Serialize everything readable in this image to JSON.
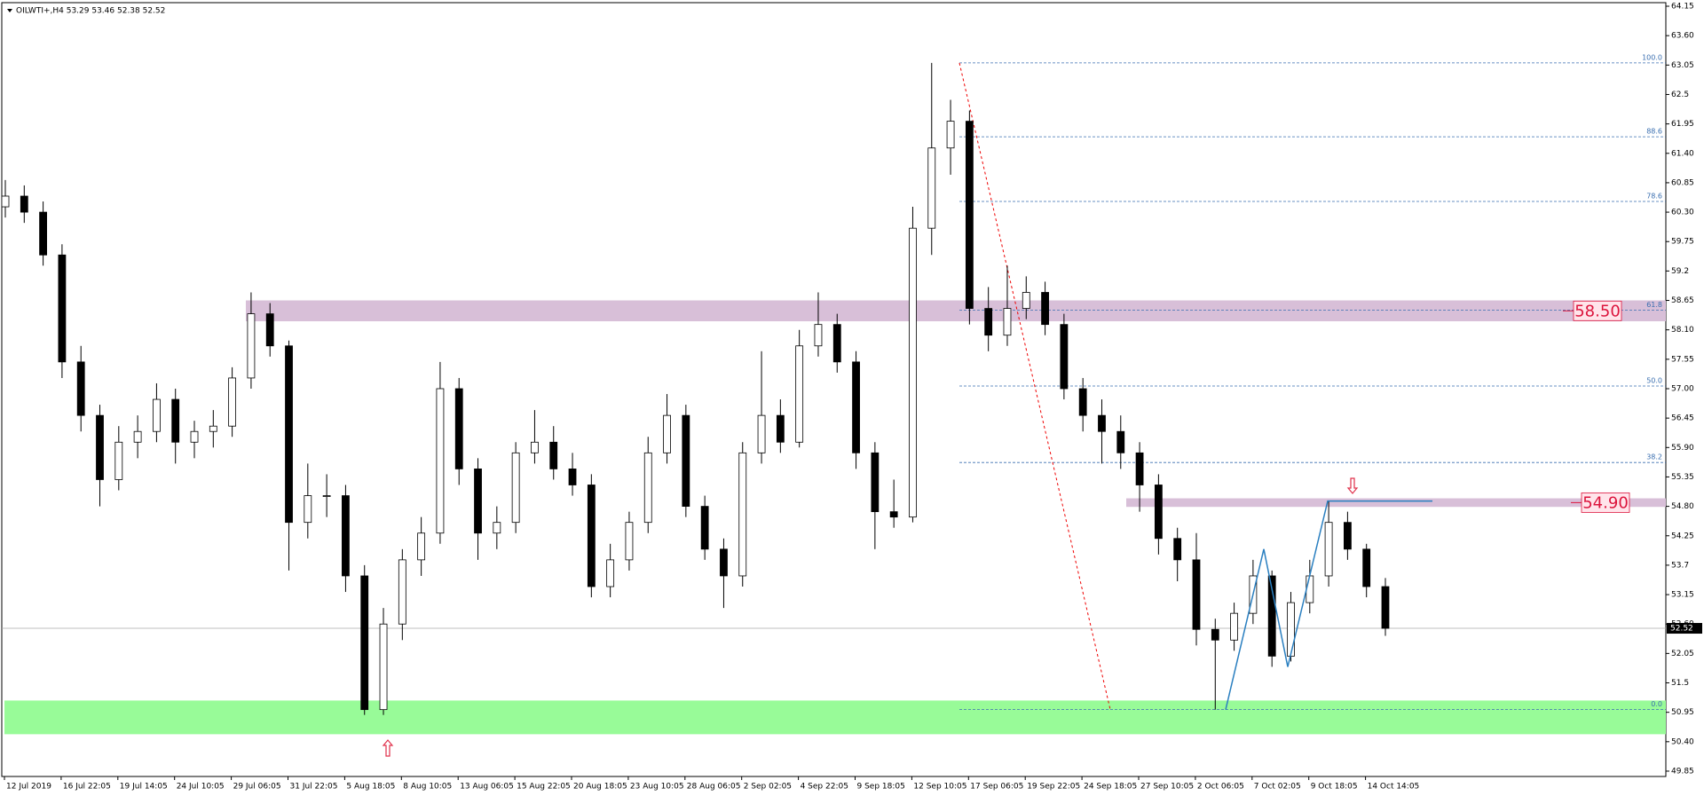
{
  "chart_data": {
    "type": "candlestick",
    "header": "OILWTI+,H4  53.29 53.46 52.38 52.52",
    "ylim": [
      49.75,
      64.2
    ],
    "yticks": [
      64.15,
      {
        "value": 63.6,
        "label": "63.60"
      },
      63.05,
      62.5,
      61.95,
      {
        "value": 61.4,
        "label": "61.40"
      },
      60.85,
      {
        "value": 60.3,
        "label": "60.30"
      },
      59.75,
      59.2,
      58.65,
      {
        "value": 58.1,
        "label": "58.10"
      },
      57.55,
      {
        "value": 57.0,
        "label": "57.00"
      },
      56.45,
      {
        "value": 55.9,
        "label": "55.90"
      },
      55.35,
      {
        "value": 54.8,
        "label": "54.80"
      },
      54.25,
      53.7,
      53.15,
      {
        "value": 52.6,
        "label": "52.60"
      },
      52.05,
      51.5,
      50.95,
      {
        "value": 50.4,
        "label": "50.40"
      },
      49.85
    ],
    "xticks": [
      "12 Jul 2019",
      "16 Jul 22:05",
      "19 Jul 14:05",
      "24 Jul 10:05",
      "29 Jul 06:05",
      "31 Jul 22:05",
      "5 Aug 18:05",
      "8 Aug 10:05",
      "13 Aug 06:05",
      "15 Aug 22:05",
      "20 Aug 18:05",
      "23 Aug 10:05",
      "28 Aug 06:05",
      "2 Sep 02:05",
      "4 Sep 22:05",
      "9 Sep 18:05",
      "12 Sep 10:05",
      "17 Sep 06:05",
      "19 Sep 22:05",
      "24 Sep 18:05",
      "27 Sep 10:05",
      "2 Oct 06:05",
      "7 Oct 02:05",
      "9 Oct 18:05",
      "14 Oct 14:05"
    ],
    "ohlc": [
      [
        60.4,
        60.9,
        60.2,
        60.6
      ],
      [
        60.6,
        60.8,
        60.1,
        60.3
      ],
      [
        60.3,
        60.5,
        59.3,
        59.5
      ],
      [
        59.5,
        59.7,
        57.2,
        57.5
      ],
      [
        57.5,
        57.8,
        56.2,
        56.5
      ],
      [
        56.5,
        56.7,
        54.8,
        55.3
      ],
      [
        55.3,
        56.3,
        55.1,
        56.0
      ],
      [
        56.0,
        56.5,
        55.7,
        56.2
      ],
      [
        56.2,
        57.1,
        56.0,
        56.8
      ],
      [
        56.8,
        57.0,
        55.6,
        56.0
      ],
      [
        56.0,
        56.4,
        55.7,
        56.2
      ],
      [
        56.2,
        56.6,
        55.9,
        56.3
      ],
      [
        56.3,
        57.4,
        56.1,
        57.2
      ],
      [
        57.2,
        58.8,
        57.0,
        58.4
      ],
      [
        58.4,
        58.6,
        57.6,
        57.8
      ],
      [
        57.8,
        57.9,
        53.6,
        54.5
      ],
      [
        54.5,
        55.6,
        54.2,
        55.0
      ],
      [
        55.0,
        55.4,
        54.6,
        55.0
      ],
      [
        55.0,
        55.2,
        53.2,
        53.5
      ],
      [
        53.5,
        53.7,
        50.9,
        51.0
      ],
      [
        51.0,
        52.9,
        50.9,
        52.6
      ],
      [
        52.6,
        54.0,
        52.3,
        53.8
      ],
      [
        53.8,
        54.6,
        53.5,
        54.3
      ],
      [
        54.3,
        57.5,
        54.1,
        57.0
      ],
      [
        57.0,
        57.2,
        55.2,
        55.5
      ],
      [
        55.5,
        55.7,
        53.8,
        54.3
      ],
      [
        54.3,
        54.8,
        54.0,
        54.5
      ],
      [
        54.5,
        56.0,
        54.3,
        55.8
      ],
      [
        55.8,
        56.6,
        55.6,
        56.0
      ],
      [
        56.0,
        56.3,
        55.3,
        55.5
      ],
      [
        55.5,
        55.8,
        55.0,
        55.2
      ],
      [
        55.2,
        55.4,
        53.1,
        53.3
      ],
      [
        53.3,
        54.1,
        53.1,
        53.8
      ],
      [
        53.8,
        54.7,
        53.6,
        54.5
      ],
      [
        54.5,
        56.1,
        54.3,
        55.8
      ],
      [
        55.8,
        56.9,
        55.6,
        56.5
      ],
      [
        56.5,
        56.7,
        54.6,
        54.8
      ],
      [
        54.8,
        55.0,
        53.8,
        54.0
      ],
      [
        54.0,
        54.2,
        52.9,
        53.5
      ],
      [
        53.5,
        56.0,
        53.3,
        55.8
      ],
      [
        55.8,
        57.7,
        55.6,
        56.5
      ],
      [
        56.5,
        56.8,
        55.8,
        56.0
      ],
      [
        56.0,
        58.1,
        55.9,
        57.8
      ],
      [
        57.8,
        58.8,
        57.6,
        58.2
      ],
      [
        58.2,
        58.4,
        57.3,
        57.5
      ],
      [
        57.5,
        57.7,
        55.5,
        55.8
      ],
      [
        55.8,
        56.0,
        54.0,
        54.7
      ],
      [
        54.7,
        55.3,
        54.4,
        54.6
      ],
      [
        54.6,
        60.4,
        54.5,
        60.0
      ],
      [
        60.0,
        63.09,
        59.5,
        61.5
      ],
      [
        61.5,
        62.4,
        61.0,
        62.0
      ],
      [
        62.0,
        62.2,
        58.2,
        58.5
      ],
      [
        58.5,
        58.9,
        57.7,
        58.0
      ],
      [
        58.0,
        59.3,
        57.8,
        58.5
      ],
      [
        58.5,
        59.1,
        58.3,
        58.8
      ],
      [
        58.8,
        59.0,
        58.0,
        58.2
      ],
      [
        58.2,
        58.4,
        56.8,
        57.0
      ],
      [
        57.0,
        57.2,
        56.2,
        56.5
      ],
      [
        56.5,
        56.8,
        55.6,
        56.2
      ],
      [
        56.2,
        56.5,
        55.5,
        55.8
      ],
      [
        55.8,
        56.0,
        54.7,
        55.2
      ],
      [
        55.2,
        55.4,
        53.9,
        54.2
      ],
      [
        54.2,
        54.4,
        53.4,
        53.8
      ],
      [
        53.8,
        54.3,
        52.2,
        52.5
      ],
      [
        52.5,
        52.7,
        51.0,
        52.3
      ],
      [
        52.3,
        53.0,
        52.1,
        52.8
      ],
      [
        52.8,
        53.8,
        52.6,
        53.5
      ],
      [
        53.5,
        53.6,
        51.8,
        52.0
      ],
      [
        52.0,
        53.2,
        51.9,
        53.0
      ],
      [
        53.0,
        53.8,
        52.8,
        53.5
      ],
      [
        53.5,
        54.9,
        53.3,
        54.5
      ],
      [
        54.5,
        54.7,
        53.8,
        54.0
      ],
      [
        54.0,
        54.1,
        53.1,
        53.3
      ],
      [
        53.3,
        53.46,
        52.38,
        52.52
      ]
    ],
    "last_price": 52.52,
    "fib_levels": [
      {
        "value": 63.09,
        "label": "100.0"
      },
      {
        "value": 61.71,
        "label": "88.6"
      },
      {
        "value": 60.5,
        "label": "78.6"
      },
      {
        "value": 58.47,
        "label": "61.8"
      },
      {
        "value": 57.05,
        "label": "50.0"
      },
      {
        "value": 55.62,
        "label": "38.2"
      },
      {
        "value": 51.0,
        "label": "0.0"
      }
    ],
    "zones": [
      {
        "low": 58.26,
        "high": 58.65,
        "label": "58.50",
        "color": "#d8bfd8"
      },
      {
        "low": 54.79,
        "high": 54.95,
        "label": "54.90",
        "color": "#d8bfd8"
      },
      {
        "low": 50.54,
        "high": 51.17,
        "color": "#98fb98"
      }
    ],
    "zigzag": [
      51.0,
      54.0,
      51.8,
      54.9,
      54.9
    ]
  }
}
